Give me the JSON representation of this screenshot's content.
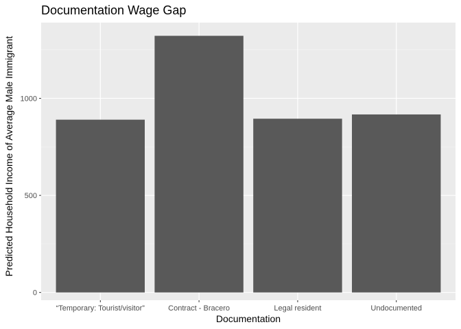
{
  "chart_data": {
    "type": "bar",
    "title": "Documentation Wage Gap",
    "xlabel": "Documentation",
    "ylabel": "Predicted Household Income of Average Male Immigrant",
    "categories": [
      "“Temporary: Tourist/visitor”",
      "Contract - Bracero",
      "Legal resident",
      "Undocumented"
    ],
    "values": [
      890,
      1322,
      895,
      917
    ],
    "ylim": [
      -40,
      1390
    ],
    "y_ticks": [
      0,
      500,
      1000
    ],
    "y_tick_labels": [
      "0",
      "500",
      "1000"
    ],
    "grid": true,
    "legend": "none",
    "colors": {
      "bar": "#595959",
      "panel": "#ebebeb",
      "grid_major": "#ffffff",
      "grid_minor": "#f5f5f5",
      "tick": "#333333",
      "background": "#ffffff"
    }
  }
}
